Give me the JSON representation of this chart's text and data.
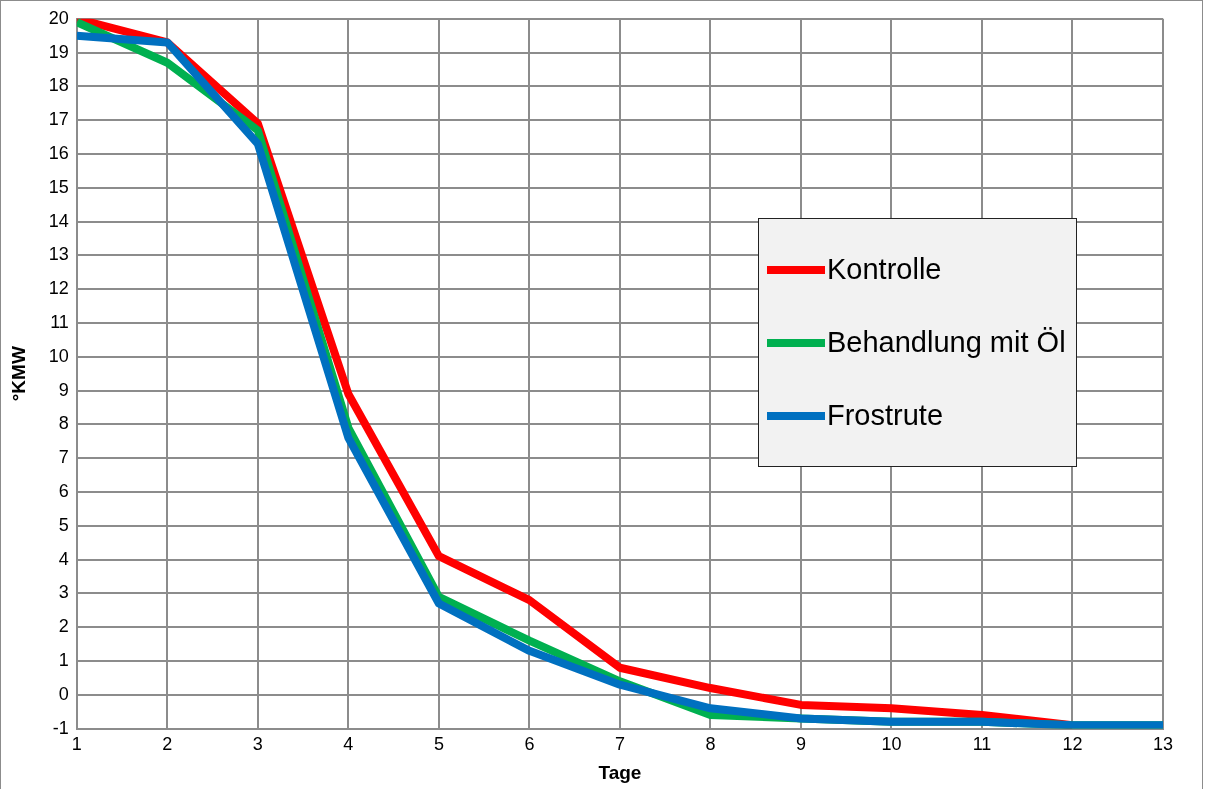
{
  "chart_data": {
    "type": "line",
    "xlabel": "Tage",
    "ylabel": "°KMW",
    "x": [
      1,
      2,
      3,
      4,
      5,
      6,
      7,
      8,
      9,
      10,
      11,
      12,
      13
    ],
    "xlim": [
      1,
      13
    ],
    "xticks": [
      1,
      2,
      3,
      4,
      5,
      6,
      7,
      8,
      9,
      10,
      11,
      12,
      13
    ],
    "ylim": [
      -1,
      20
    ],
    "yticks": [
      -1,
      0,
      1,
      2,
      3,
      4,
      5,
      6,
      7,
      8,
      9,
      10,
      11,
      12,
      13,
      14,
      15,
      16,
      17,
      18,
      19,
      20
    ],
    "grid": true,
    "legend": "right",
    "marker": "none",
    "line_style": "solid",
    "series": [
      {
        "name": "Kontrolle",
        "color": "#ff0000",
        "values": [
          20,
          19.3,
          16.9,
          8.9,
          4.1,
          2.8,
          0.8,
          0.2,
          -0.3,
          -0.4,
          -0.6,
          -0.9,
          null
        ]
      },
      {
        "name": "Behandlung mit Öl",
        "color": "#00b050",
        "values": [
          19.9,
          18.7,
          16.7,
          7.9,
          2.9,
          1.6,
          0.4,
          -0.6,
          -0.7,
          -0.8,
          -0.8,
          -0.9,
          -0.9
        ]
      },
      {
        "name": "Frostrute",
        "color": "#0070c0",
        "values": [
          19.5,
          19.3,
          16.3,
          7.6,
          2.7,
          1.3,
          0.3,
          -0.4,
          -0.7,
          -0.8,
          -0.8,
          -0.9,
          -0.9
        ]
      }
    ]
  }
}
